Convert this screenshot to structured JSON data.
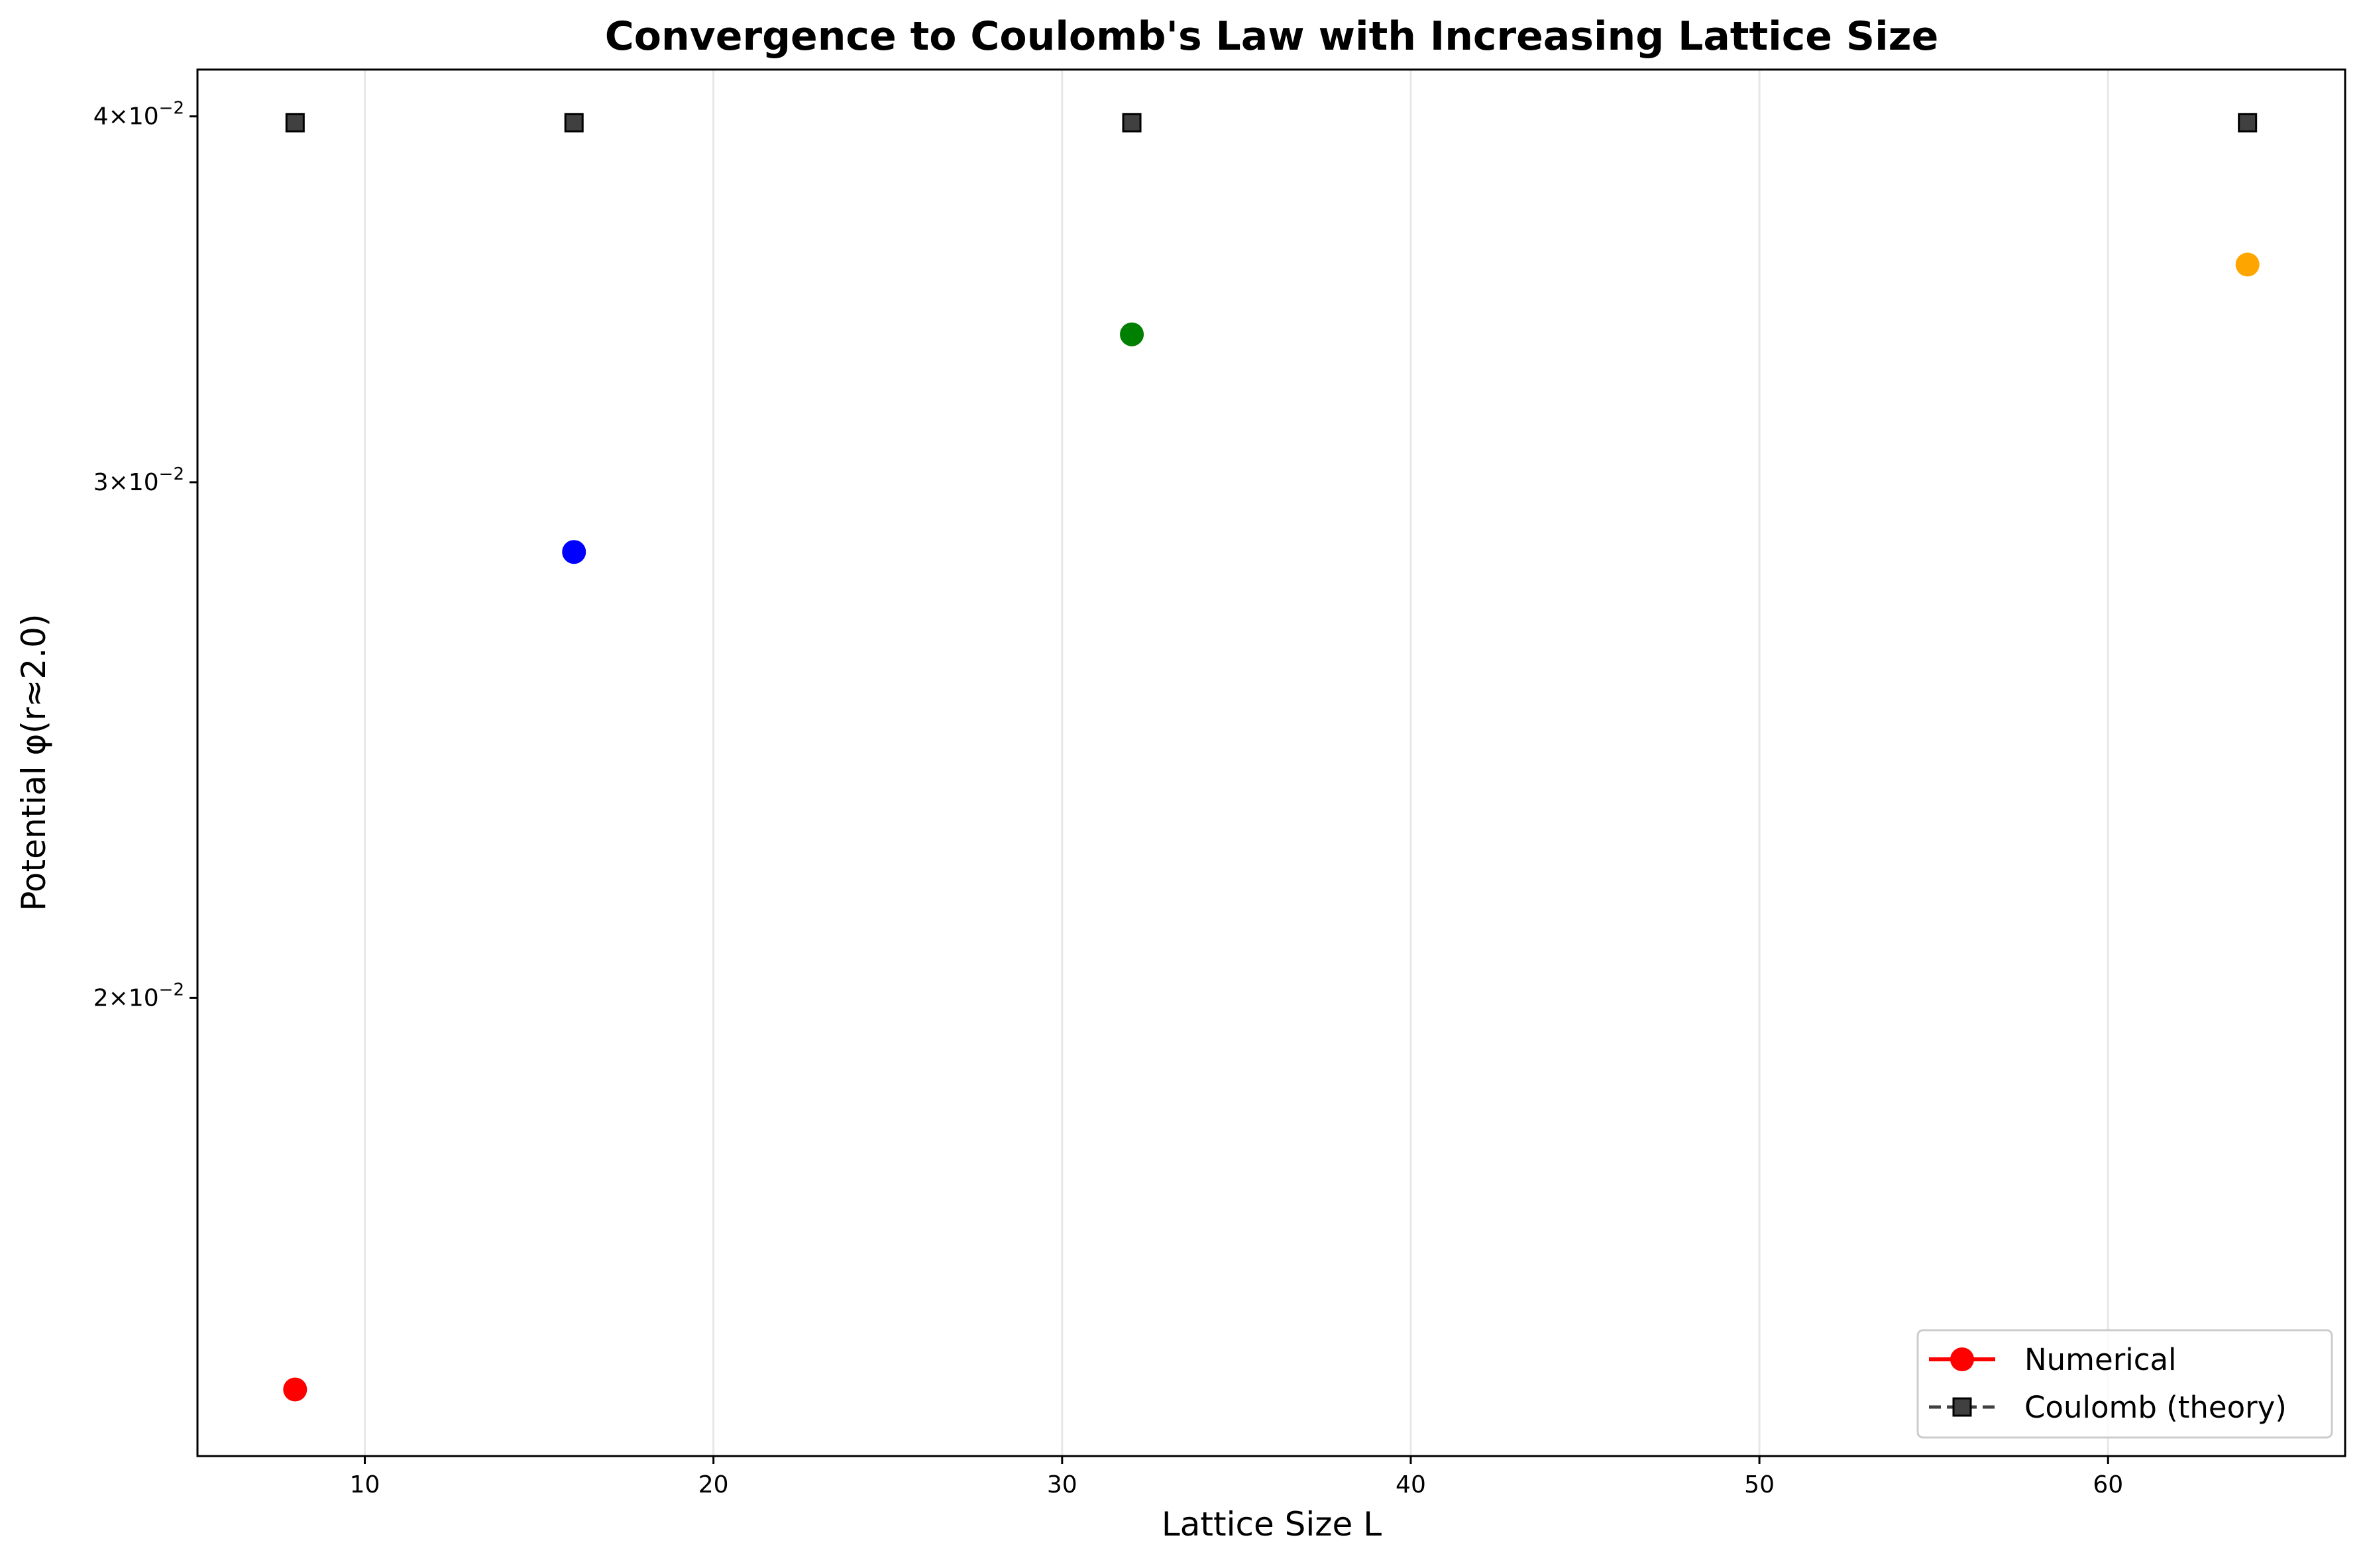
{
  "chart_data": {
    "type": "scatter",
    "title": "Convergence to Coulomb's Law with Increasing Lattice Size",
    "xlabel": "Lattice Size L",
    "ylabel": "Potential φ(r≈2.0)",
    "yscale": "log",
    "xlim": [
      5.2,
      66.8
    ],
    "ylim": [
      0.01395,
      0.0415
    ],
    "xticks": [
      10,
      20,
      30,
      40,
      50,
      60
    ],
    "xtick_labels": [
      "10",
      "20",
      "30",
      "40",
      "50",
      "60"
    ],
    "yticks": [
      {
        "value": 0.04,
        "base": "4",
        "mult": "×10",
        "exp": "−2"
      },
      {
        "value": 0.03,
        "base": "3",
        "mult": "×10",
        "exp": "−2"
      },
      {
        "value": 0.02,
        "base": "2",
        "mult": "×10",
        "exp": "−2"
      }
    ],
    "grid": "x",
    "legend_position": "lower-right",
    "series": [
      {
        "name": "Numerical",
        "marker": "circle",
        "line_color": "#ff0000",
        "points": [
          {
            "x": 8,
            "y": 0.0147,
            "color": "#ff0000"
          },
          {
            "x": 16,
            "y": 0.0284,
            "color": "#0000ff"
          },
          {
            "x": 32,
            "y": 0.0337,
            "color": "#008000"
          },
          {
            "x": 64,
            "y": 0.0356,
            "color": "#ffa500"
          }
        ]
      },
      {
        "name": "Coulomb (theory)",
        "marker": "square",
        "line_color": "#404040",
        "points": [
          {
            "x": 8,
            "y": 0.0398,
            "color": "#404040"
          },
          {
            "x": 16,
            "y": 0.0398,
            "color": "#404040"
          },
          {
            "x": 32,
            "y": 0.0398,
            "color": "#404040"
          },
          {
            "x": 64,
            "y": 0.0398,
            "color": "#404040"
          }
        ]
      }
    ]
  }
}
